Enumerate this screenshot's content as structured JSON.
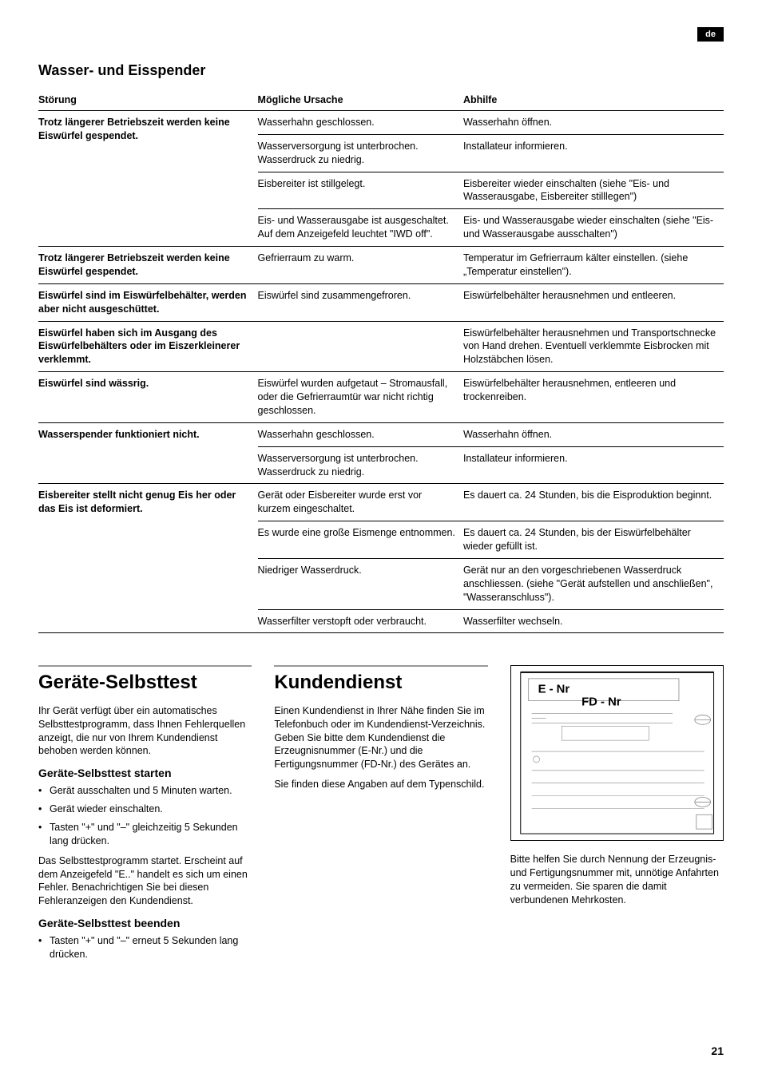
{
  "lang_tag": "de",
  "page_number": "21",
  "section_heading": "Wasser- und Eisspender",
  "table": {
    "headers": {
      "fault": "Störung",
      "cause": "Mögliche Ursache",
      "remedy": "Abhilfe"
    },
    "groups": [
      {
        "fault": "Trotz längerer Betriebszeit werden keine Eiswürfel gespendet.",
        "rows": [
          {
            "cause": "Wasserhahn geschlossen.",
            "remedy": "Wasserhahn öffnen."
          },
          {
            "cause": "Wasserversorgung ist unterbrochen. Wasserdruck zu niedrig.",
            "remedy": "Installateur informieren."
          },
          {
            "cause": "Eisbereiter ist stillgelegt.",
            "remedy": "Eisbereiter wieder einschalten (siehe \"Eis- und Wasserausgabe, Eisbereiter stilllegen\")"
          },
          {
            "cause": "Eis- und Wasserausgabe ist ausgeschaltet. Auf dem Anzeigefeld leuchtet \"IWD off\".",
            "remedy": "Eis- und Wasserausgabe wieder einschalten (siehe \"Eis- und Wasserausgabe ausschalten\")"
          }
        ]
      },
      {
        "fault": "Trotz längerer Betriebszeit werden keine Eiswürfel gespendet.",
        "rows": [
          {
            "cause": "Gefrierraum zu warm.",
            "remedy": "Temperatur im Gefrierraum kälter einstellen. (siehe „Temperatur einstellen\")."
          }
        ]
      },
      {
        "fault": "Eiswürfel sind im Eiswürfelbehälter, werden aber nicht ausgeschüttet.",
        "rows": [
          {
            "cause": "Eiswürfel sind zusammengefroren.",
            "remedy": "Eiswürfelbehälter herausnehmen und entleeren."
          }
        ]
      },
      {
        "fault": "Eiswürfel haben sich im Ausgang des Eiswürfelbehälters oder im Eiszerkleinerer verklemmt.",
        "rows": [
          {
            "cause": "",
            "remedy": "Eiswürfelbehälter herausnehmen und Transportschnecke von Hand drehen. Eventuell verklemmte Eisbrocken mit Holzstäbchen lösen."
          }
        ]
      },
      {
        "fault": "Eiswürfel sind wässrig.",
        "rows": [
          {
            "cause": "Eiswürfel wurden aufgetaut – Stromausfall, oder die Gefrierraumtür war nicht richtig geschlossen.",
            "remedy": "Eiswürfelbehälter herausnehmen, entleeren und trockenreiben."
          }
        ]
      },
      {
        "fault": "Wasserspender funktioniert nicht.",
        "rows": [
          {
            "cause": "Wasserhahn geschlossen.",
            "remedy": "Wasserhahn öffnen."
          },
          {
            "cause": "Wasserversorgung ist unterbrochen. Wasserdruck zu niedrig.",
            "remedy": "Installateur informieren."
          }
        ]
      },
      {
        "fault": "Eisbereiter stellt nicht genug Eis her oder das Eis ist deformiert.",
        "rows": [
          {
            "cause": "Gerät oder Eisbereiter wurde erst vor kurzem eingeschaltet.",
            "remedy": "Es dauert ca. 24 Stunden, bis die Eisproduktion beginnt."
          },
          {
            "cause": "Es wurde eine große Eismenge entnommen.",
            "remedy": "Es dauert ca. 24 Stunden, bis der Eiswürfelbehälter wieder gefüllt ist."
          },
          {
            "cause": "Niedriger Wasserdruck.",
            "remedy": "Gerät nur an den vorgeschriebenen Wasserdruck anschliessen. (siehe \"Gerät aufstellen und anschließen\", \"Wasseranschluss\")."
          },
          {
            "cause": "Wasserfilter verstopft oder verbraucht.",
            "remedy": "Wasserfilter wechseln."
          }
        ]
      }
    ]
  },
  "selftest": {
    "heading": "Geräte-Selbsttest",
    "intro": "Ihr Gerät verfügt über ein automatisches Selbsttestprogramm, dass Ihnen Fehlerquellen anzeigt, die nur von Ihrem Kundendienst behoben werden können.",
    "start_heading": "Geräte-Selbsttest starten",
    "start_items": [
      "Gerät ausschalten und 5 Minuten warten.",
      "Gerät wieder einschalten.",
      "Tasten \"+\" und \"–\" gleichzeitig 5 Sekunden lang drücken."
    ],
    "start_note": "Das Selbsttestprogramm startet. Erscheint auf dem Anzeigefeld \"E..\" handelt es sich um einen Fehler. Benachrichtigen Sie bei diesen Fehleranzeigen den Kundendienst.",
    "end_heading": "Geräte-Selbsttest beenden",
    "end_items": [
      "Tasten \"+\" und \"–\" erneut 5 Sekunden lang drücken."
    ]
  },
  "service": {
    "heading": "Kundendienst",
    "p1": "Einen Kundendienst in Ihrer Nähe finden Sie im Telefonbuch oder im Kundendienst-Verzeichnis. Geben Sie bitte dem Kundendienst die Erzeugnisnummer (E-Nr.) und die Fertigungsnummer (FD-Nr.) des Gerätes an.",
    "p2": "Sie finden diese Angaben auf dem Typenschild.",
    "diagram_labels": {
      "e": "E - Nr",
      "fd": "FD - Nr"
    },
    "p3": "Bitte helfen Sie durch Nennung der Erzeugnis- und Fertigungsnummer mit, unnötige Anfahrten zu vermeiden. Sie sparen die damit verbundenen Mehrkosten."
  }
}
